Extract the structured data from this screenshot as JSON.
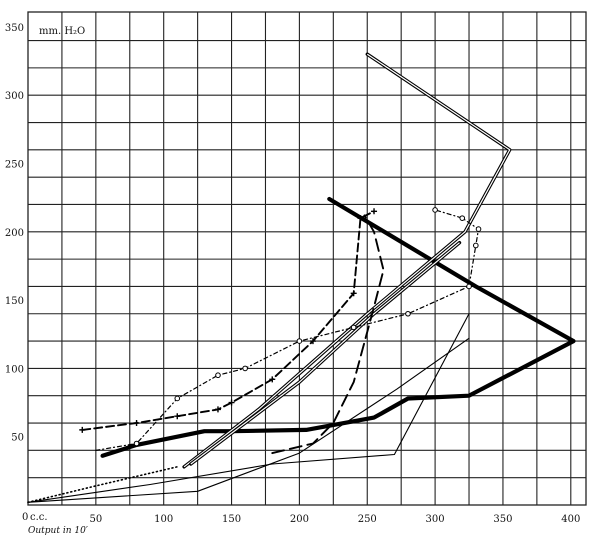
{
  "chart_data": {
    "type": "line",
    "title": "",
    "y_unit_label": "mm. H₂O",
    "x_origin_label": "c.c.",
    "xlabel": "Output in 10′",
    "ylabel": "",
    "xlim": [
      0,
      410
    ],
    "ylim": [
      0,
      360
    ],
    "grid": true,
    "x_ticks": [
      0,
      50,
      100,
      150,
      200,
      250,
      300,
      350,
      400
    ],
    "x_tick_labels": [
      "0",
      "50",
      "100",
      "150",
      "200",
      "250",
      "300",
      "350",
      "400"
    ],
    "y_ticks": [
      50,
      100,
      150,
      200,
      250,
      300,
      350
    ],
    "y_tick_labels": [
      "50",
      "100",
      "150",
      "200",
      "250",
      "300",
      "350"
    ],
    "series": [
      {
        "style": "heavy-solid",
        "color": "#000000",
        "x": [
          55,
          80,
          130,
          150,
          205,
          255,
          280,
          325,
          402,
          330,
          222
        ],
        "y": [
          36,
          44,
          54,
          54,
          55,
          64,
          78,
          80,
          120,
          160,
          224
        ]
      },
      {
        "style": "double-line",
        "color": "#000000",
        "x": [
          115,
          170,
          250,
          322,
          355,
          250
        ],
        "y": [
          28,
          70,
          140,
          200,
          260,
          330
        ]
      },
      {
        "style": "double-line",
        "color": "#000000",
        "x": [
          120,
          200,
          255,
          318
        ],
        "y": [
          30,
          90,
          140,
          192
        ]
      },
      {
        "style": "dash-cross",
        "color": "#000000",
        "x": [
          40,
          80,
          110,
          140,
          150,
          180,
          210,
          240,
          245,
          255
        ],
        "y": [
          55,
          60,
          65,
          70,
          75,
          92,
          120,
          155,
          210,
          215
        ]
      },
      {
        "style": "dash-dot-circle",
        "color": "#000000",
        "x": [
          50,
          80,
          110,
          140,
          160,
          200,
          240,
          280,
          325,
          330,
          332,
          320,
          300
        ],
        "y": [
          40,
          45,
          78,
          95,
          100,
          120,
          130,
          140,
          160,
          190,
          202,
          210,
          216
        ]
      },
      {
        "style": "long-dash",
        "color": "#000000",
        "x": [
          180,
          210,
          225,
          240,
          255,
          262,
          255,
          248
        ],
        "y": [
          38,
          45,
          60,
          90,
          145,
          172,
          200,
          212
        ]
      },
      {
        "style": "thin-solid",
        "color": "#000000",
        "x": [
          0,
          90,
          180,
          270,
          325
        ],
        "y": [
          2,
          15,
          30,
          37,
          140
        ]
      },
      {
        "style": "thin-solid",
        "color": "#000000",
        "x": [
          0,
          125,
          200,
          272,
          325
        ],
        "y": [
          2,
          10,
          38,
          85,
          122
        ]
      },
      {
        "style": "dotted",
        "color": "#000000",
        "x": [
          0,
          50,
          110
        ],
        "y": [
          2,
          14,
          28
        ]
      }
    ]
  }
}
